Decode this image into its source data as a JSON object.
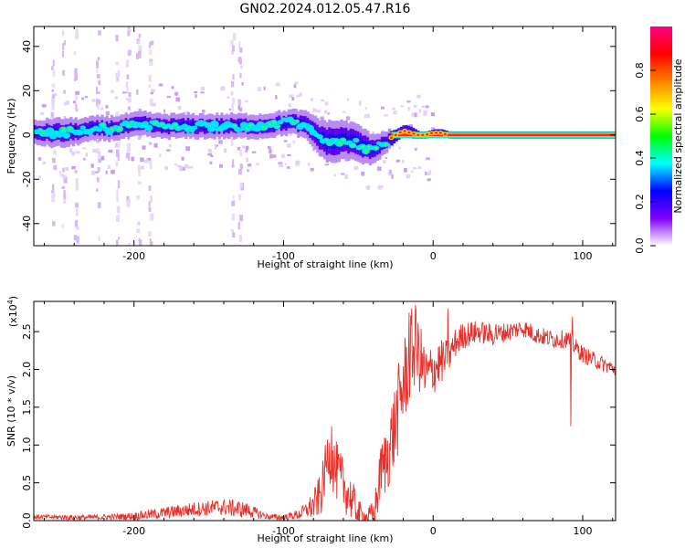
{
  "title": "GN02.2024.012.05.47.R16",
  "chart_data": [
    {
      "type": "heatmap",
      "title": "GN02.2024.012.05.47.R16",
      "xlabel": "Height of straight line (km)",
      "ylabel": "Frequency (Hz)",
      "xlim": [
        -267,
        122
      ],
      "ylim": [
        -50,
        49
      ],
      "xticks": [
        -200,
        -100,
        0,
        100
      ],
      "yticks": [
        -40,
        -20,
        0,
        20,
        40
      ],
      "xtick_labels": [
        "-200",
        "-100",
        "0",
        "100"
      ],
      "ytick_labels": [
        "-40",
        "-20",
        "0",
        "20",
        "40"
      ],
      "trace": {
        "x": [
          -265,
          -255,
          -245,
          -235,
          -225,
          -215,
          -205,
          -195,
          -185,
          -175,
          -165,
          -155,
          -145,
          -135,
          -125,
          -115,
          -105,
          -95,
          -85,
          -80,
          -75,
          -70,
          -65,
          -60,
          -55,
          -50,
          -45,
          -40,
          -35,
          -30,
          -25,
          -20,
          -15,
          -10,
          -5,
          0,
          5,
          10,
          20,
          40,
          60,
          80,
          100,
          122
        ],
        "y": [
          1,
          1,
          1,
          2,
          3,
          3,
          4,
          5,
          4,
          4,
          4,
          4,
          4,
          4,
          4,
          4,
          5,
          6,
          4,
          1,
          -2,
          -3,
          -3,
          -2,
          -3,
          -4,
          -6,
          -6,
          -4,
          -2,
          0,
          2,
          1,
          0,
          0,
          1,
          1,
          0,
          0,
          0,
          0,
          0,
          0,
          0
        ],
        "spread": [
          4,
          5,
          5,
          4,
          4,
          4,
          4,
          4,
          4,
          4,
          4,
          4,
          4,
          4,
          4,
          4,
          4,
          4,
          5,
          6,
          7,
          8,
          8,
          7,
          7,
          7,
          6,
          5,
          4,
          3,
          2,
          2,
          2,
          1,
          1,
          1,
          1,
          1,
          1,
          1,
          1,
          1,
          1,
          1
        ]
      },
      "tone_line_start_x": -28,
      "colorbar": {
        "label": "Normalized spectral amplitude",
        "range": [
          0.0,
          1.0
        ],
        "ticks": [
          0.0,
          0.2,
          0.4,
          0.6,
          0.8
        ],
        "tick_labels": [
          "0.0",
          "0.2",
          "0.4",
          "0.6",
          "0.8"
        ],
        "colors": [
          "#ffffff",
          "#8000ff",
          "#0000ff",
          "#00ffff",
          "#00ff00",
          "#ffff00",
          "#ff8000",
          "#ff0000",
          "#ff0080"
        ]
      }
    },
    {
      "type": "line",
      "xlabel": "Height of straight line (km)",
      "ylabel": "SNR (10 * v/v)",
      "scale_label": "(x10",
      "scale_exp": "4",
      "scale_close": ")",
      "xlim": [
        -267,
        122
      ],
      "ylim": [
        0,
        2.9
      ],
      "xticks": [
        -200,
        -100,
        0,
        100
      ],
      "yticks": [
        0.0,
        0.5,
        1.0,
        1.5,
        2.0,
        2.5
      ],
      "xtick_labels": [
        "-200",
        "-100",
        "0",
        "100"
      ],
      "ytick_labels": [
        "0.0",
        "0.5",
        "1.0",
        "1.5",
        "2.0",
        "2.5"
      ],
      "color": "#e8302a",
      "envelope": {
        "x": [
          -267,
          -230,
          -200,
          -180,
          -160,
          -140,
          -125,
          -110,
          -100,
          -90,
          -80,
          -75,
          -70,
          -66,
          -62,
          -58,
          -55,
          -50,
          -45,
          -40,
          -38,
          -35,
          -30,
          -25,
          -20,
          -15,
          -12,
          -8,
          -5,
          0,
          5,
          10,
          15,
          20,
          30,
          40,
          50,
          60,
          70,
          80,
          90,
          95,
          100,
          110,
          122
        ],
        "y": [
          0.05,
          0.04,
          0.06,
          0.1,
          0.15,
          0.18,
          0.14,
          0.05,
          0.04,
          0.08,
          0.2,
          0.35,
          0.9,
          0.7,
          0.55,
          0.4,
          0.3,
          0.1,
          0.05,
          0.08,
          0.25,
          0.6,
          0.9,
          1.3,
          1.8,
          2.2,
          2.3,
          2.1,
          1.9,
          2.0,
          2.1,
          2.15,
          2.35,
          2.45,
          2.5,
          2.45,
          2.5,
          2.55,
          2.45,
          2.4,
          2.4,
          2.3,
          2.2,
          2.1,
          2.0
        ]
      },
      "noise": {
        "x": [
          -267,
          -210,
          -180,
          -130,
          -110,
          -95,
          -85,
          -75,
          -65,
          -55,
          -45,
          -40,
          -35,
          -25,
          -15,
          -5,
          5,
          15,
          30,
          60,
          90,
          122
        ],
        "amp": [
          0.03,
          0.04,
          0.08,
          0.12,
          0.04,
          0.05,
          0.1,
          0.3,
          0.4,
          0.3,
          0.08,
          0.2,
          0.4,
          0.6,
          0.6,
          0.4,
          0.3,
          0.2,
          0.15,
          0.12,
          0.12,
          0.1
        ]
      },
      "spikes": [
        [
          -68,
          1.25
        ],
        [
          -12,
          2.85
        ],
        [
          -16,
          2.75
        ],
        [
          -35,
          0.95
        ],
        [
          10,
          2.8
        ],
        [
          42,
          2.6
        ],
        [
          92,
          1.25
        ],
        [
          93,
          2.7
        ]
      ]
    }
  ]
}
